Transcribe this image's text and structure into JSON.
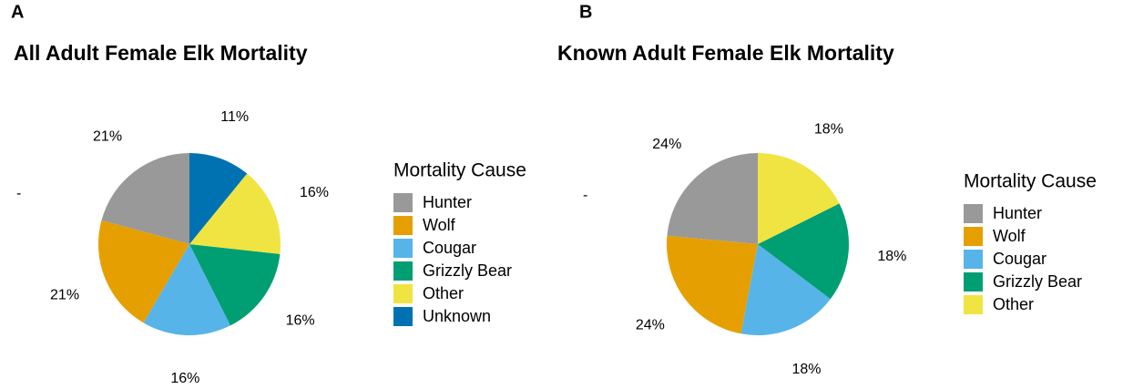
{
  "chart_data": [
    {
      "type": "pie",
      "panel_label": "A",
      "title": "All Adult Female Elk Mortality",
      "ylabel": "-",
      "legend_title": "Mortality Cause",
      "categories": [
        "Hunter",
        "Wolf",
        "Cougar",
        "Grizzly Bear",
        "Other",
        "Unknown"
      ],
      "values": [
        21,
        21,
        16,
        16,
        16,
        11
      ],
      "value_labels": [
        "21%",
        "21%",
        "16%",
        "16%",
        "16%",
        "11%"
      ],
      "colors": [
        "#999999",
        "#e69f00",
        "#56b4e9",
        "#009e73",
        "#f0e442",
        "#0072b2"
      ]
    },
    {
      "type": "pie",
      "panel_label": "B",
      "title": "Known Adult Female Elk Mortality",
      "ylabel": "-",
      "legend_title": "Mortality Cause",
      "categories": [
        "Hunter",
        "Wolf",
        "Cougar",
        "Grizzly Bear",
        "Other"
      ],
      "values": [
        24,
        24,
        18,
        18,
        18
      ],
      "value_labels": [
        "24%",
        "24%",
        "18%",
        "18%",
        "18%"
      ],
      "colors": [
        "#999999",
        "#e69f00",
        "#56b4e9",
        "#009e73",
        "#f0e442"
      ]
    }
  ]
}
